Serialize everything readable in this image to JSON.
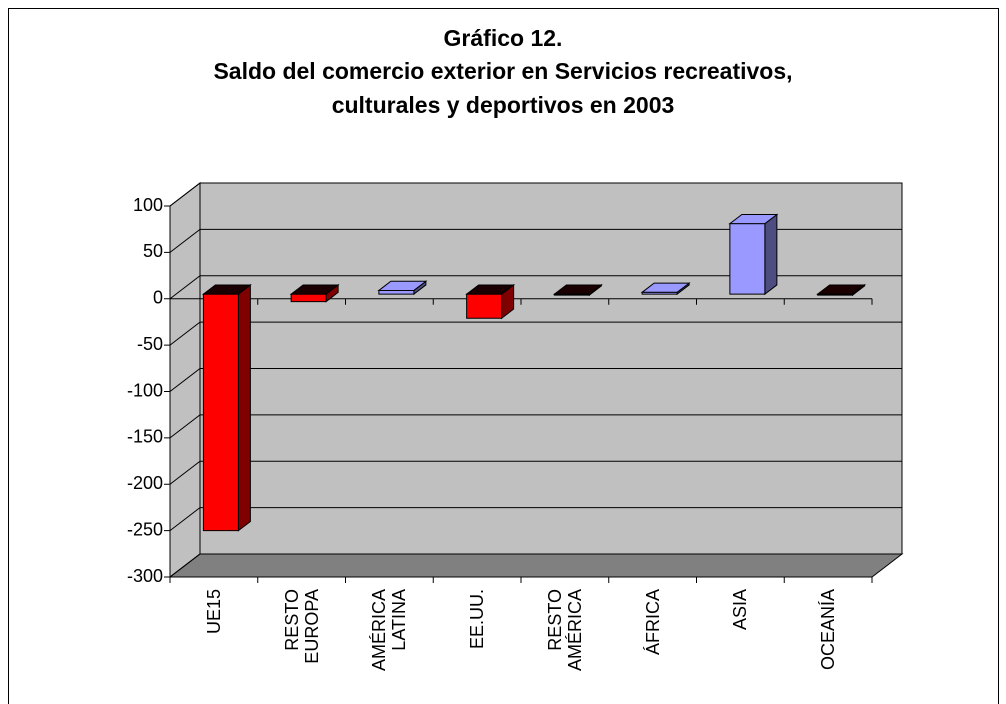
{
  "chart_data": {
    "type": "bar3d",
    "title": [
      "Gráfico 12.",
      "Saldo del comercio exterior en Servicios recreativos,",
      "culturales y deportivos en 2003"
    ],
    "categories": [
      "UE15",
      "RESTO EUROPA",
      "AMÉRICA LATINA",
      "EE.UU.",
      "RESTO AMÉRICA",
      "ÁFRICA",
      "ASIA",
      "OCEANÍA"
    ],
    "values": [
      -255,
      -8,
      4,
      -26,
      -1,
      2,
      76,
      -1
    ],
    "colors": [
      "#ff0000",
      "#ff0000",
      "#9999ff",
      "#ff0000",
      "#ff0000",
      "#9999ff",
      "#9999ff",
      "#ff0000"
    ],
    "ylim": [
      -300,
      100
    ],
    "yticks": [
      100,
      50,
      0,
      -50,
      -100,
      -150,
      -200,
      -250,
      -300
    ],
    "grid": true
  }
}
